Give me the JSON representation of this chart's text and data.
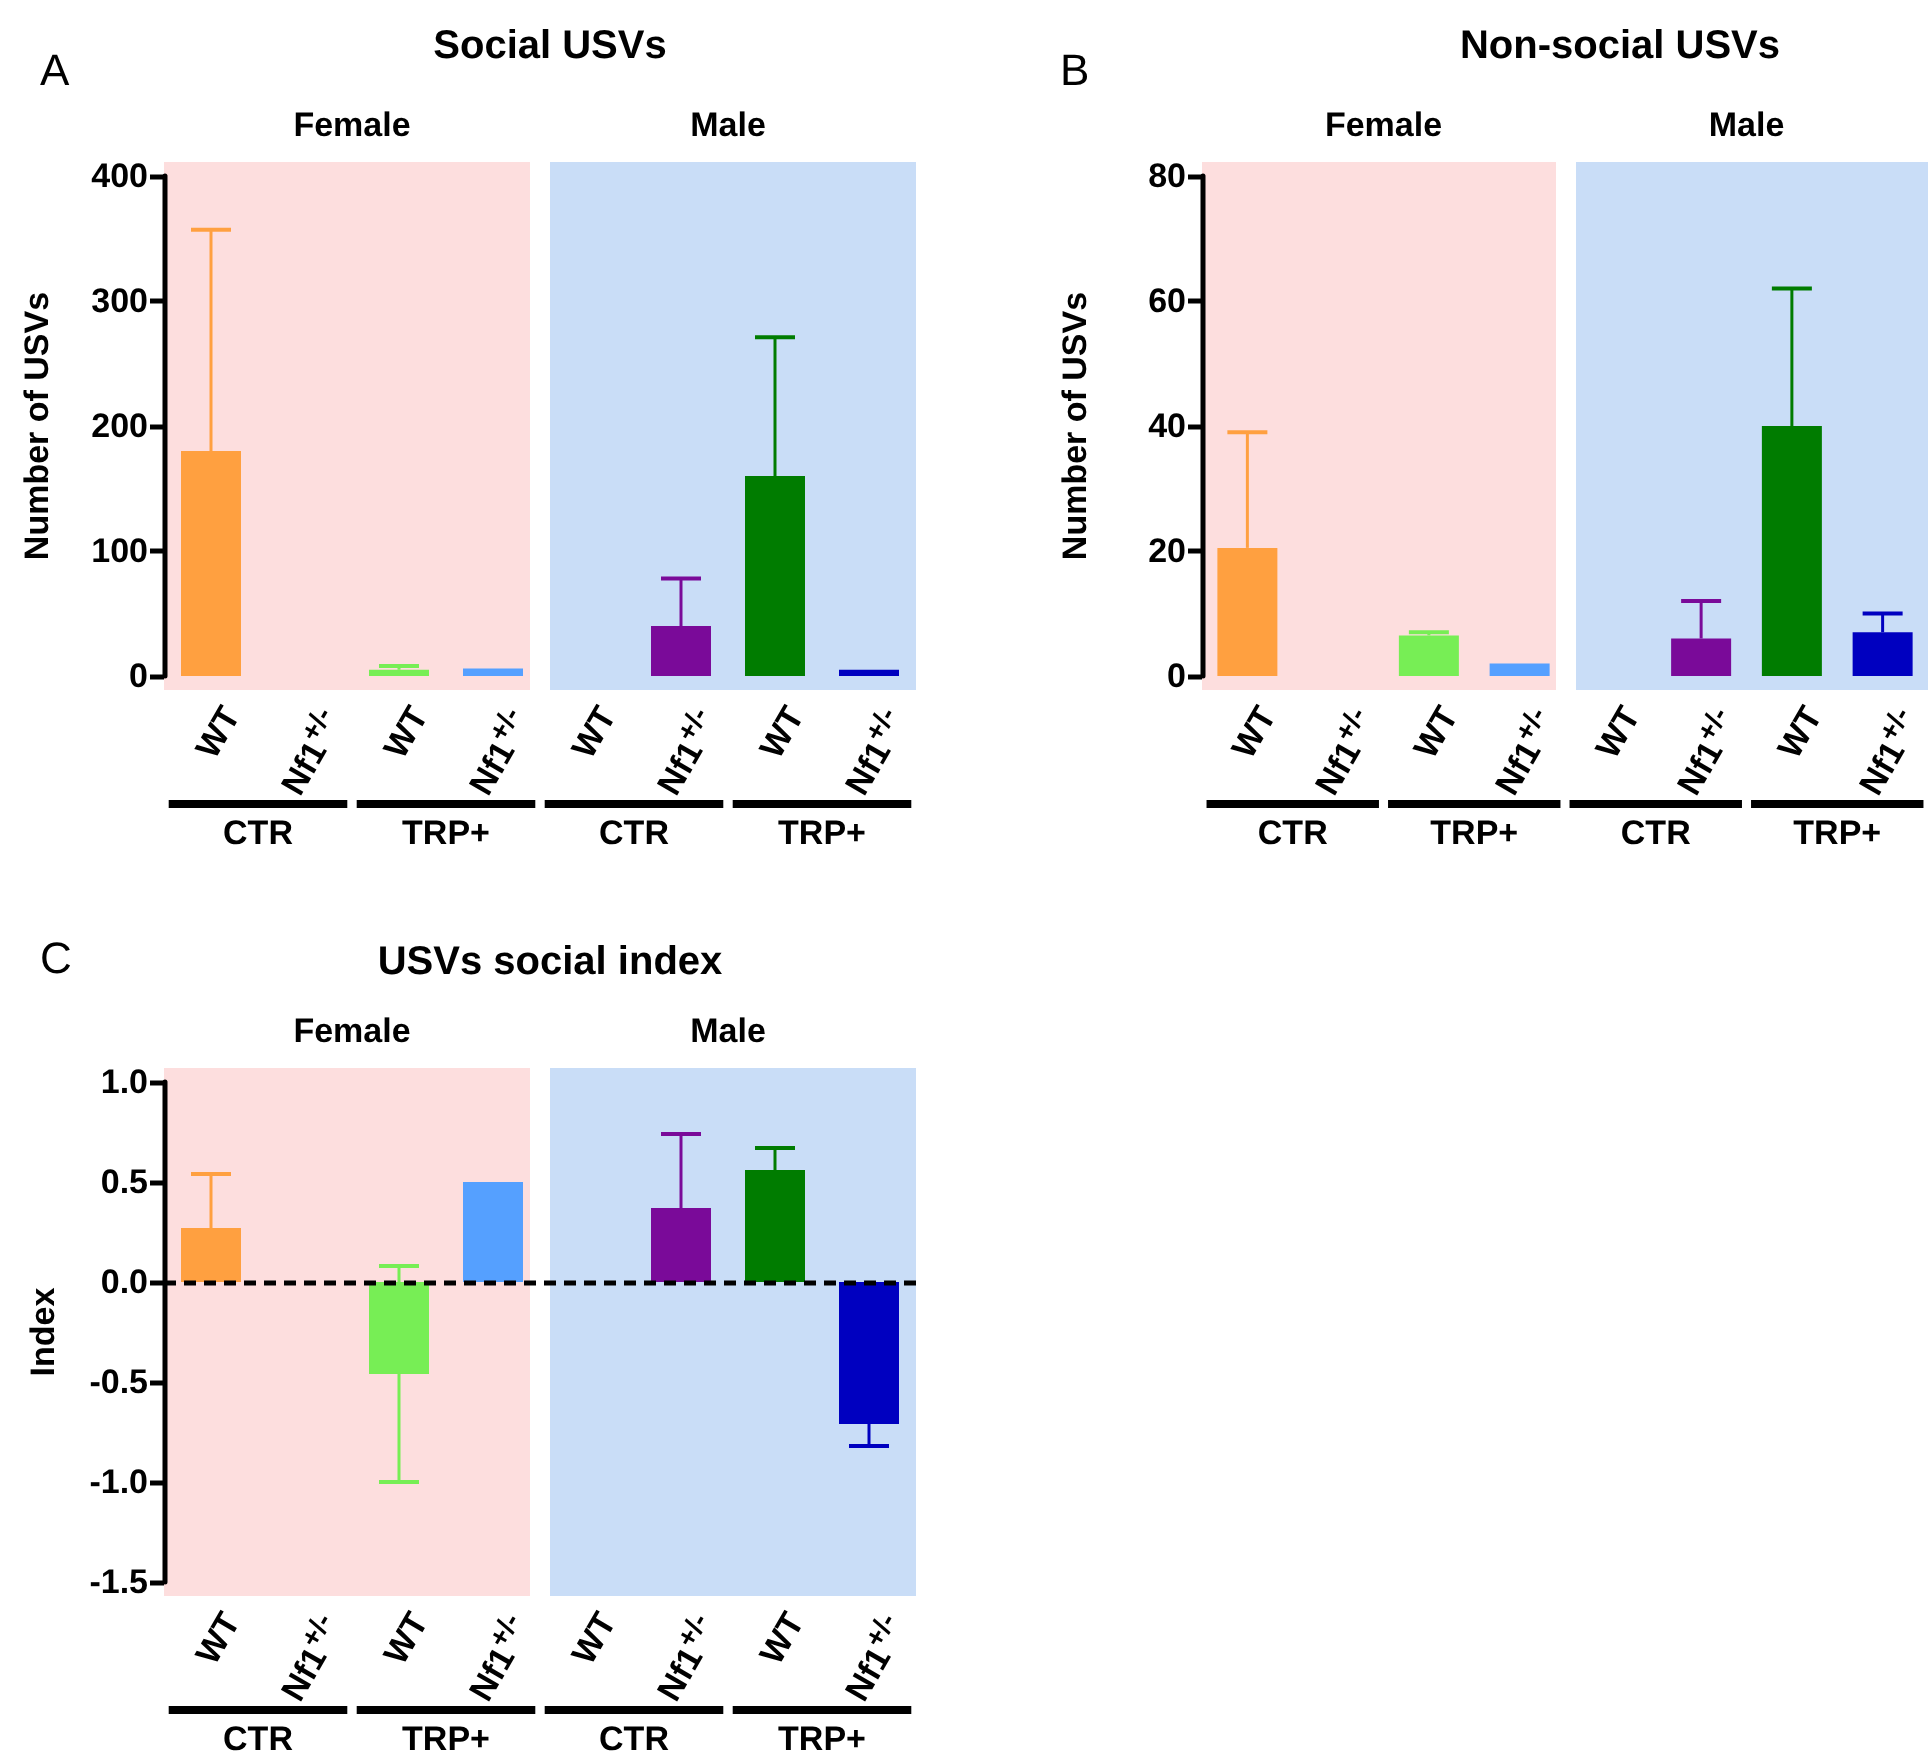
{
  "chart_data": [
    {
      "type": "bar",
      "title": "Social USVs",
      "ylabel": "Number of USVs",
      "categories": [
        "WT",
        "Nf1$^{+/-}$",
        "WT",
        "Nf1$^{+/-}$",
        "WT",
        "Nf1$^{+/-}$",
        "WT",
        "Nf1$^{+/-}$"
      ],
      "values": [
        180,
        null,
        5,
        6,
        null,
        40,
        160,
        5
      ],
      "colors": [
        "#ffa040",
        "#ffa040",
        "#77ee55",
        "#55a0ff",
        "#7a0a99",
        "#7a0a99",
        "#007c00",
        "#0000c0"
      ],
      "errors": [
        [
          180,
          357
        ],
        null,
        [
          5,
          8
        ],
        null,
        null,
        [
          40,
          78
        ],
        [
          160,
          271
        ],
        null
      ],
      "ylim": [
        0,
        400
      ],
      "yticks": [
        0,
        100,
        200,
        300,
        400
      ],
      "grid": false,
      "annotations": [
        "A",
        "Female",
        "Male",
        "CTR",
        "TRP+",
        "CTR",
        "TRP+"
      ]
    },
    {
      "type": "bar",
      "title": "Non-social USVs",
      "ylabel": "Number of USVs",
      "categories": [
        "WT",
        "Nf1$^{+/-}$",
        "WT",
        "Nf1$^{+/-}$",
        "WT",
        "Nf1$^{+/-}$",
        "WT",
        "Nf1$^{+/-}$"
      ],
      "values": [
        20.5,
        null,
        6.5,
        2,
        null,
        6,
        40,
        7
      ],
      "colors": [
        "#ffa040",
        "#ffa040",
        "#77ee55",
        "#55a0ff",
        "#7a0a99",
        "#7a0a99",
        "#007c00",
        "#0000c0"
      ],
      "errors": [
        [
          20.5,
          39
        ],
        null,
        [
          6.5,
          7
        ],
        null,
        null,
        [
          6,
          12
        ],
        [
          40,
          62
        ],
        [
          7,
          10
        ]
      ],
      "ylim": [
        0,
        80
      ],
      "yticks": [
        0,
        20,
        40,
        60,
        80
      ],
      "grid": false,
      "annotations": [
        "B",
        "Female",
        "Male",
        "CTR",
        "TRP+",
        "CTR",
        "TRP+"
      ]
    },
    {
      "type": "bar",
      "title": "USVs social index",
      "ylabel": "Index",
      "categories": [
        "WT",
        "Nf1$^{+/-}$",
        "WT",
        "Nf1$^{+/-}$",
        "WT",
        "Nf1$^{+/-}$",
        "WT",
        "Nf1$^{+/-}$"
      ],
      "values": [
        0.27,
        null,
        -0.46,
        0.5,
        null,
        0.37,
        0.56,
        -0.71
      ],
      "colors": [
        "#ffa040",
        "#ffa040",
        "#77ee55",
        "#55a0ff",
        "#7a0a99",
        "#7a0a99",
        "#007c00",
        "#0000c0"
      ],
      "errors": [
        [
          0.27,
          0.54
        ],
        null,
        [
          -1.0,
          0.08
        ],
        null,
        null,
        [
          0.37,
          0.74
        ],
        [
          0.56,
          0.67
        ],
        [
          -0.82,
          -0.71
        ]
      ],
      "ylim": [
        -1.5,
        1.0
      ],
      "yticks": [
        {
          "value": -1.5,
          "label": "-1.5"
        },
        {
          "value": -1.0,
          "label": "-1.0"
        },
        {
          "value": -0.5,
          "label": "-0.5"
        },
        {
          "value": 0,
          "label": "0.0"
        },
        {
          "value": 0.5,
          "label": "0.5"
        },
        {
          "value": 1.0,
          "label": "1.0"
        }
      ],
      "grid": false,
      "ref_lines": [
        {
          "axis": "y",
          "value": 0,
          "line_style": "dashed",
          "color": "#000000"
        }
      ],
      "annotations": [
        "C",
        "Female",
        "Male",
        "CTR",
        "TRP+",
        "CTR",
        "TRP+"
      ]
    }
  ]
}
